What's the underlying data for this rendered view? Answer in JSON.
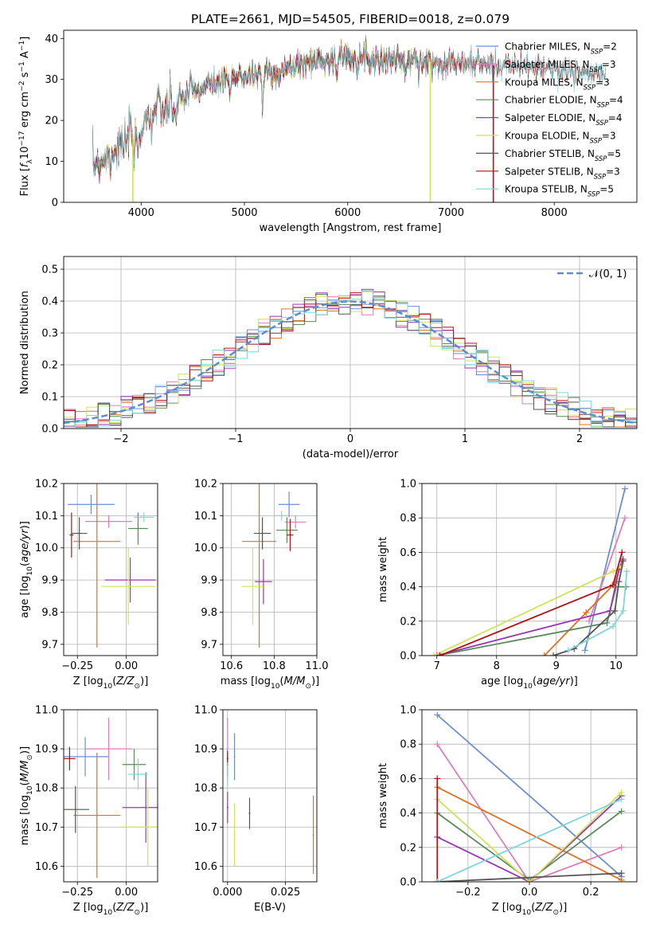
{
  "figure": {
    "title": "PLATE=2661, MJD=54505, FIBERID=0018, z=0.079"
  },
  "models": [
    {
      "name": "Chabrier MILES",
      "nssp": "2",
      "color": "#6a8ed6"
    },
    {
      "name": "Salpeter MILES",
      "nssp": "3",
      "color": "#e07cba"
    },
    {
      "name": "Kroupa MILES",
      "nssp": "3",
      "color": "#e0711f"
    },
    {
      "name": "Chabrier ELODIE",
      "nssp": "4",
      "color": "#5a8a5a"
    },
    {
      "name": "Salpeter ELODIE",
      "nssp": "4",
      "color": "#9b35b0"
    },
    {
      "name": "Kroupa ELODIE",
      "nssp": "3",
      "color": "#cfe35a"
    },
    {
      "name": "Chabrier STELIB",
      "nssp": "5",
      "color": "#555555"
    },
    {
      "name": "Salpeter STELIB",
      "nssp": "3",
      "color": "#b01515"
    },
    {
      "name": "Kroupa STELIB",
      "nssp": "5",
      "color": "#7fd6dd"
    }
  ],
  "chart_data": [
    {
      "id": "spectrum",
      "type": "line",
      "xlabel": "wavelength [Angstrom, rest frame]",
      "ylabel": "Flux [f_λ10^-17 erg cm^-2 s^-1 A^-1]",
      "xlim": [
        3250,
        8800
      ],
      "ylim": [
        0,
        42
      ],
      "xticks": [
        4000,
        5000,
        6000,
        7000,
        8000
      ],
      "yticks": [
        0,
        10,
        20,
        30,
        40
      ],
      "legend": "right",
      "continuum": {
        "x": [
          3530,
          3650,
          3800,
          3900,
          4000,
          4100,
          4300,
          4500,
          4700,
          5000,
          5300,
          5600,
          5800,
          6000,
          6300,
          6600,
          7000,
          7400,
          7800,
          8200,
          8500
        ],
        "y": [
          9,
          11,
          14,
          16,
          18,
          22,
          24,
          27,
          29,
          31,
          32,
          34,
          35,
          35.5,
          35,
          34.5,
          34,
          33.5,
          33,
          32,
          31
        ]
      },
      "dropouts": [
        {
          "series": "Kroupa ELODIE",
          "x": 3920
        },
        {
          "series": "Kroupa ELODIE",
          "x": 6800
        },
        {
          "series": "Salpeter STELIB",
          "x": 7410
        }
      ]
    },
    {
      "id": "residuals",
      "type": "histogram",
      "xlabel": "(data-model)/error",
      "ylabel": "Normed distribution",
      "xlim": [
        -2.5,
        2.5
      ],
      "ylim": [
        0,
        0.54
      ],
      "xticks": [
        -2,
        -1,
        0,
        1,
        2
      ],
      "yticks": [
        0.0,
        0.1,
        0.2,
        0.3,
        0.4,
        0.5
      ],
      "bin_width": 0.1,
      "grid": true,
      "legend": "top-right",
      "reference_label": "𝒩(0, 1)",
      "reference_color": "#5b8dd6"
    },
    {
      "id": "age-vs-Z",
      "type": "scatter",
      "xlabel": "Z [log10(Z/Z⊙)]",
      "ylabel": "age  [log10(age/yr)]",
      "xlim": [
        -0.32,
        0.16
      ],
      "ylim": [
        9.665,
        10.2
      ],
      "xticks": [
        -0.25,
        0.0
      ],
      "yticks": [
        9.7,
        9.8,
        9.9,
        10.0,
        10.1,
        10.2
      ],
      "points": [
        {
          "x": -0.18,
          "xerr": 0.12,
          "y": 10.135,
          "yerr": 0.03,
          "series": "Chabrier MILES"
        },
        {
          "x": -0.09,
          "xerr": 0.12,
          "y": 10.082,
          "yerr": 0.02,
          "series": "Salpeter MILES"
        },
        {
          "x": -0.15,
          "xerr": 0.12,
          "y": 10.02,
          "yerr": 0.33,
          "series": "Kroupa MILES"
        },
        {
          "x": 0.06,
          "xerr": 0.05,
          "y": 10.06,
          "yerr": 0.05,
          "series": "Chabrier ELODIE"
        },
        {
          "x": 0.02,
          "xerr": 0.13,
          "y": 9.9,
          "yerr": 0.07,
          "series": "Salpeter ELODIE"
        },
        {
          "x": 0.01,
          "xerr": 0.14,
          "y": 9.88,
          "yerr": 0.12,
          "series": "Kroupa ELODIE"
        },
        {
          "x": -0.24,
          "xerr": 0.04,
          "y": 10.045,
          "yerr": 0.05,
          "series": "Chabrier STELIB"
        },
        {
          "x": -0.28,
          "xerr": 0.01,
          "y": 10.04,
          "yerr": 0.07,
          "series": "Salpeter STELIB"
        },
        {
          "x": 0.09,
          "xerr": 0.05,
          "y": 10.095,
          "yerr": 0.015,
          "series": "Kroupa STELIB"
        }
      ]
    },
    {
      "id": "age-vs-mass",
      "type": "scatter",
      "xlabel": "mass [log10(M/M⊙)]",
      "ylabel": "",
      "xlim": [
        10.56,
        11.0
      ],
      "ylim": [
        9.665,
        10.2
      ],
      "xticks": [
        10.6,
        10.8,
        11.0
      ],
      "yticks": [
        9.7,
        9.8,
        9.9,
        10.0,
        10.1,
        10.2
      ],
      "points": [
        {
          "x": 10.87,
          "xerr": 0.05,
          "y": 10.135,
          "yerr": 0.04,
          "series": "Chabrier MILES"
        },
        {
          "x": 10.9,
          "xerr": 0.05,
          "y": 10.08,
          "yerr": 0.02,
          "series": "Salpeter MILES"
        },
        {
          "x": 10.73,
          "xerr": 0.08,
          "y": 10.02,
          "yerr": 0.33,
          "series": "Kroupa MILES"
        },
        {
          "x": 10.86,
          "xerr": 0.05,
          "y": 10.055,
          "yerr": 0.04,
          "series": "Chabrier ELODIE"
        },
        {
          "x": 10.75,
          "xerr": 0.04,
          "y": 9.895,
          "yerr": 0.07,
          "series": "Salpeter ELODIE"
        },
        {
          "x": 10.7,
          "xerr": 0.05,
          "y": 9.88,
          "yerr": 0.12,
          "series": "Kroupa ELODIE"
        },
        {
          "x": 10.745,
          "xerr": 0.04,
          "y": 10.045,
          "yerr": 0.05,
          "series": "Chabrier STELIB"
        },
        {
          "x": 10.875,
          "xerr": 0.015,
          "y": 10.04,
          "yerr": 0.05,
          "series": "Salpeter STELIB"
        },
        {
          "x": 10.835,
          "xerr": 0.03,
          "y": 10.1,
          "yerr": 0.015,
          "series": "Kroupa STELIB"
        }
      ]
    },
    {
      "id": "weight-vs-age",
      "type": "line",
      "xlabel": "age  [log10(age/yr)]",
      "ylabel": "mass weight",
      "xlim": [
        6.75,
        10.35
      ],
      "ylim": [
        0,
        1.0
      ],
      "xticks": [
        7,
        8,
        9,
        10
      ],
      "yticks": [
        0.0,
        0.2,
        0.4,
        0.6,
        0.8,
        1.0
      ],
      "series": [
        {
          "name": "Chabrier MILES",
          "points": [
            [
              9.48,
              0.03
            ],
            [
              10.15,
              0.97
            ]
          ]
        },
        {
          "name": "Salpeter MILES",
          "points": [
            [
              9.55,
              0.2
            ],
            [
              10.15,
              0.8
            ]
          ]
        },
        {
          "name": "Kroupa MILES",
          "points": [
            [
              8.8,
              0.0
            ],
            [
              9.5,
              0.25
            ],
            [
              9.98,
              0.42
            ],
            [
              10.1,
              0.55
            ]
          ]
        },
        {
          "name": "Chabrier ELODIE",
          "points": [
            [
              7.0,
              0.0
            ],
            [
              9.85,
              0.19
            ],
            [
              10.0,
              0.4
            ],
            [
              10.17,
              0.4
            ]
          ]
        },
        {
          "name": "Salpeter ELODIE",
          "points": [
            [
              7.0,
              0.0
            ],
            [
              9.9,
              0.26
            ],
            [
              10.05,
              0.5
            ],
            [
              10.12,
              0.56
            ]
          ]
        },
        {
          "name": "Kroupa ELODIE",
          "points": [
            [
              6.95,
              0.0
            ],
            [
              9.95,
              0.49
            ],
            [
              10.1,
              0.52
            ]
          ]
        },
        {
          "name": "Chabrier STELIB",
          "points": [
            [
              8.95,
              0.0
            ],
            [
              9.3,
              0.04
            ],
            [
              9.98,
              0.26
            ],
            [
              10.05,
              0.43
            ],
            [
              10.12,
              0.55
            ]
          ]
        },
        {
          "name": "Salpeter STELIB",
          "points": [
            [
              7.05,
              0.0
            ],
            [
              9.95,
              0.41
            ],
            [
              10.1,
              0.6
            ]
          ]
        },
        {
          "name": "Kroupa STELIB",
          "points": [
            [
              9.2,
              0.03
            ],
            [
              9.95,
              0.17
            ],
            [
              10.12,
              0.26
            ],
            [
              10.18,
              0.49
            ]
          ]
        }
      ]
    },
    {
      "id": "mass-vs-Z",
      "type": "scatter",
      "xlabel": "Z [log10(Z/Z⊙)]",
      "ylabel": "mass [log10(M/M⊙)]",
      "xlim": [
        -0.32,
        0.16
      ],
      "ylim": [
        10.56,
        11.0
      ],
      "xticks": [
        -0.25,
        0.0
      ],
      "yticks": [
        10.6,
        10.7,
        10.8,
        10.9,
        11.0
      ],
      "points": [
        {
          "x": -0.21,
          "xerr": 0.12,
          "y": 10.88,
          "yerr": 0.05,
          "series": "Chabrier MILES"
        },
        {
          "x": -0.09,
          "xerr": 0.12,
          "y": 10.9,
          "yerr": 0.08,
          "series": "Salpeter MILES"
        },
        {
          "x": -0.15,
          "xerr": 0.12,
          "y": 10.73,
          "yerr": 0.16,
          "series": "Kroupa MILES"
        },
        {
          "x": 0.04,
          "xerr": 0.06,
          "y": 10.86,
          "yerr": 0.04,
          "series": "Chabrier ELODIE"
        },
        {
          "x": 0.1,
          "xerr": 0.12,
          "y": 10.75,
          "yerr": 0.09,
          "series": "Salpeter ELODIE"
        },
        {
          "x": 0.11,
          "xerr": 0.13,
          "y": 10.7,
          "yerr": 0.1,
          "series": "Kroupa ELODIE"
        },
        {
          "x": -0.26,
          "xerr": 0.07,
          "y": 10.745,
          "yerr": 0.06,
          "series": "Chabrier STELIB"
        },
        {
          "x": -0.29,
          "xerr": 0.03,
          "y": 10.875,
          "yerr": 0.03,
          "series": "Salpeter STELIB"
        },
        {
          "x": 0.06,
          "xerr": 0.05,
          "y": 10.835,
          "yerr": 0.04,
          "series": "Kroupa STELIB"
        }
      ]
    },
    {
      "id": "mass-vs-EBV",
      "type": "scatter",
      "xlabel": "E(B-V)",
      "ylabel": "",
      "xlim": [
        -0.002,
        0.0385
      ],
      "ylim": [
        10.56,
        11.0
      ],
      "xticks": [
        0.0,
        0.025
      ],
      "yticks": [
        10.6,
        10.7,
        10.8,
        10.9,
        11.0
      ],
      "points": [
        {
          "x": 0.003,
          "y": 10.88,
          "yerr": 0.06,
          "series": "Chabrier MILES"
        },
        {
          "x": 0.0,
          "y": 10.9,
          "yerr": 0.08,
          "series": "Salpeter MILES"
        },
        {
          "x": 0.037,
          "y": 10.68,
          "yerr": 0.1,
          "series": "Kroupa MILES"
        },
        {
          "x": 0.0,
          "y": 10.86,
          "yerr": 0.03,
          "series": "Chabrier ELODIE"
        },
        {
          "x": 0.0,
          "y": 10.75,
          "yerr": 0.04,
          "series": "Salpeter ELODIE"
        },
        {
          "x": 0.003,
          "y": 10.68,
          "yerr": 0.08,
          "series": "Kroupa ELODIE"
        },
        {
          "x": 0.0095,
          "y": 10.735,
          "yerr": 0.04,
          "series": "Chabrier STELIB"
        },
        {
          "x": 0.0,
          "y": 10.875,
          "yerr": 0.02,
          "series": "Salpeter STELIB"
        },
        {
          "x": 0.0,
          "y": 10.835,
          "yerr": 0.03,
          "series": "Kroupa STELIB"
        }
      ]
    },
    {
      "id": "weight-vs-Z",
      "type": "line",
      "xlabel": "Z [log10(Z/Z⊙)]",
      "ylabel": "mass weight",
      "xlim": [
        -0.35,
        0.35
      ],
      "ylim": [
        0,
        1.0
      ],
      "xticks": [
        -0.2,
        0.0,
        0.2
      ],
      "yticks": [
        0.0,
        0.2,
        0.4,
        0.6,
        0.8,
        1.0
      ],
      "series": [
        {
          "name": "Chabrier MILES",
          "points": [
            [
              -0.3,
              0.97
            ],
            [
              0.3,
              0.03
            ]
          ]
        },
        {
          "name": "Salpeter MILES",
          "points": [
            [
              -0.3,
              0.8
            ],
            [
              0.0,
              0.0
            ],
            [
              0.3,
              0.2
            ]
          ]
        },
        {
          "name": "Kroupa MILES",
          "points": [
            [
              -0.3,
              0.55
            ],
            [
              0.3,
              0.01
            ]
          ]
        },
        {
          "name": "Chabrier ELODIE",
          "points": [
            [
              -0.3,
              0.4
            ],
            [
              0.0,
              0.01
            ],
            [
              0.3,
              0.41
            ]
          ]
        },
        {
          "name": "Salpeter ELODIE",
          "points": [
            [
              -0.3,
              0.26
            ],
            [
              0.0,
              0.0
            ],
            [
              0.3,
              0.5
            ]
          ]
        },
        {
          "name": "Kroupa ELODIE",
          "points": [
            [
              -0.3,
              0.48
            ],
            [
              0.0,
              0.0
            ],
            [
              0.3,
              0.52
            ]
          ]
        },
        {
          "name": "Chabrier STELIB",
          "points": [
            [
              -0.3,
              0.0
            ],
            [
              0.3,
              0.05
            ]
          ]
        },
        {
          "name": "Salpeter STELIB",
          "points": [
            [
              -0.3,
              0.0
            ],
            [
              -0.3,
              0.6
            ]
          ]
        },
        {
          "name": "Kroupa STELIB",
          "points": [
            [
              -0.3,
              0.0
            ],
            [
              0.3,
              0.48
            ]
          ]
        }
      ]
    }
  ]
}
